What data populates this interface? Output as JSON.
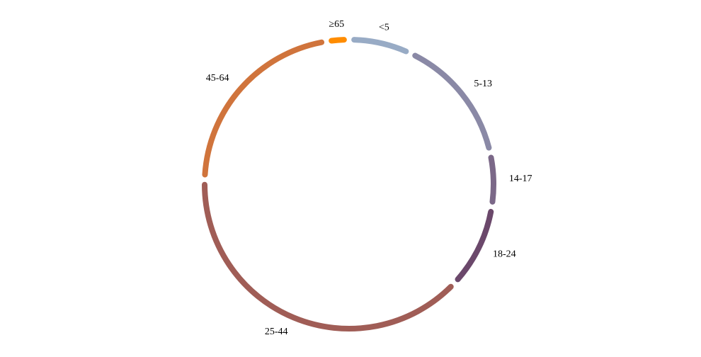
{
  "chart_data": {
    "type": "pie",
    "style": "ring",
    "start_angle": "top",
    "direction": "clockwise",
    "categories": [
      "<5",
      "5-13",
      "14-17",
      "18-24",
      "25-44",
      "45-64",
      "≥65"
    ],
    "values": [
      7,
      14.5,
      6,
      9.5,
      38.5,
      22,
      2.5
    ],
    "colors": [
      "#98abc5",
      "#8a89a6",
      "#7b6888",
      "#6b486b",
      "#a05d56",
      "#d0743c",
      "#ff8c00"
    ]
  }
}
